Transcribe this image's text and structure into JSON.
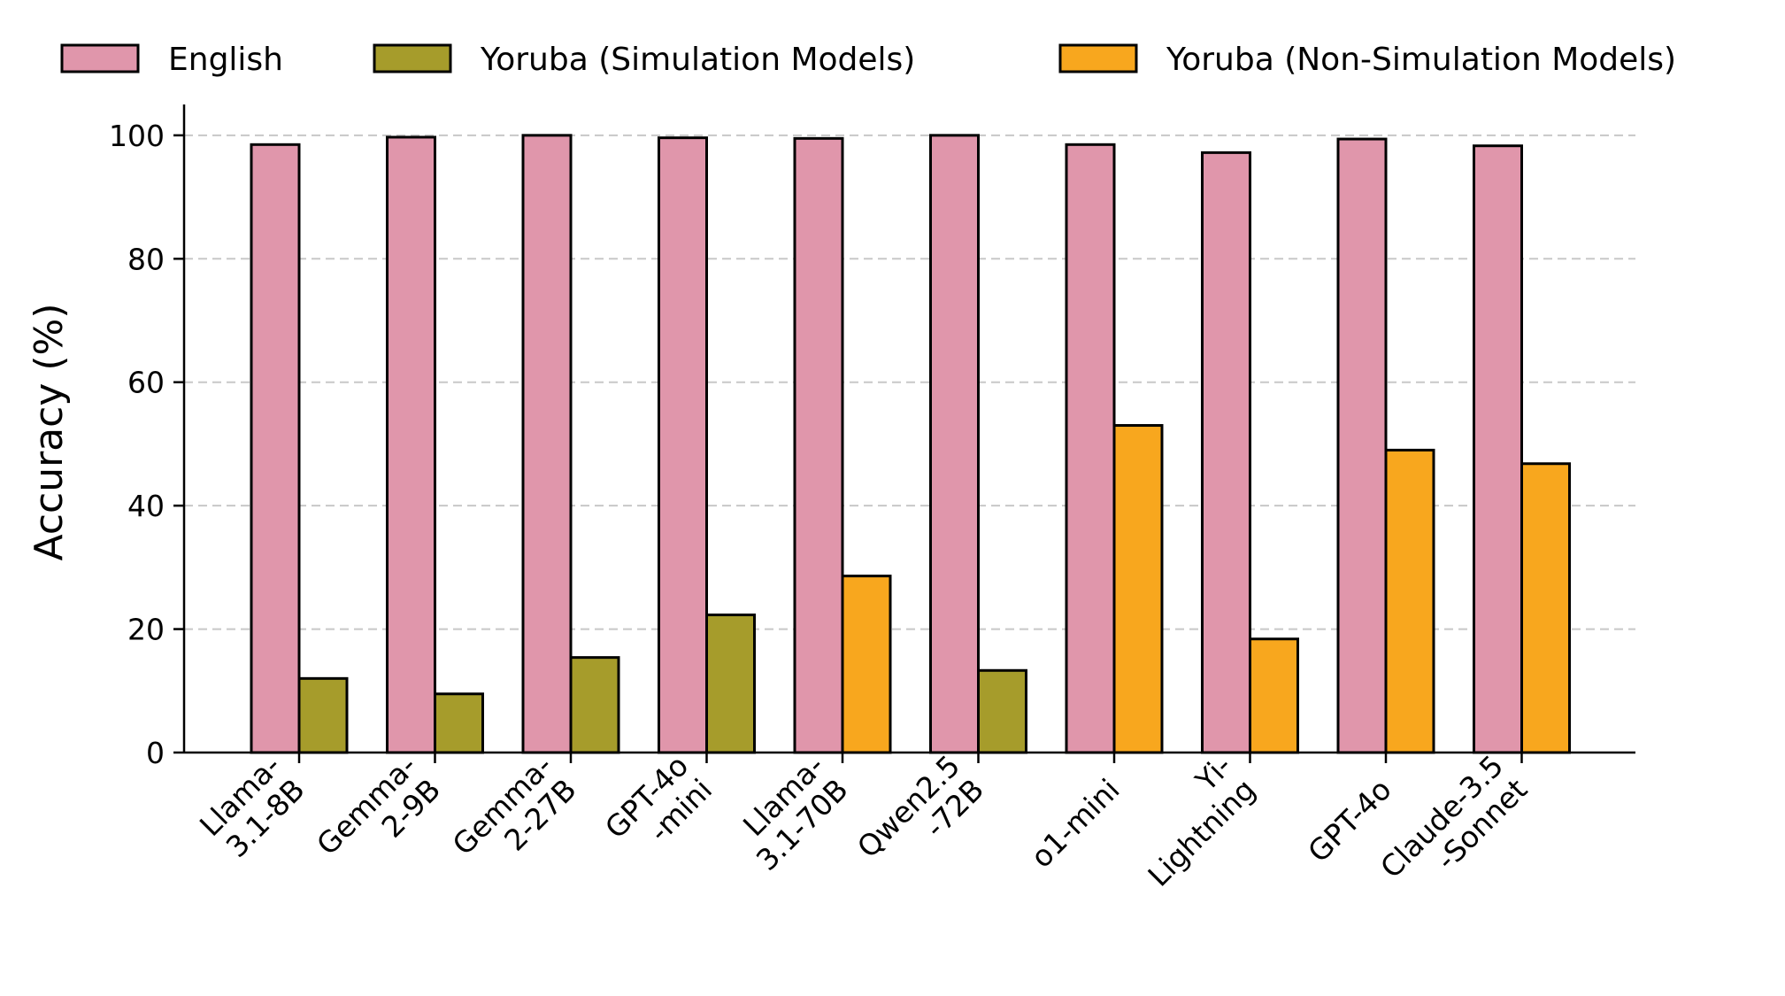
{
  "chart_data": {
    "type": "bar",
    "title": "",
    "xlabel": "",
    "ylabel": "Accuracy (%)",
    "ylim": [
      0,
      105
    ],
    "yticks": [
      0,
      20,
      40,
      60,
      80,
      100
    ],
    "grid": "horizontal dashed",
    "legend_position": "top",
    "categories": [
      [
        "Llama-",
        "3.1-8B"
      ],
      [
        "Gemma-",
        "2-9B"
      ],
      [
        "Gemma-",
        "2-27B"
      ],
      [
        "GPT-4o",
        "-mini"
      ],
      [
        "Llama-",
        "3.1-70B"
      ],
      [
        "Qwen2.5",
        "-72B"
      ],
      [
        "o1-mini"
      ],
      [
        "Yi-",
        "Lightning"
      ],
      [
        "GPT-4o"
      ],
      [
        "Claude-3.5",
        "-Sonnet"
      ]
    ],
    "series": [
      {
        "name": "English",
        "color": "#e096ab",
        "values": [
          98.5,
          99.7,
          100,
          99.6,
          99.5,
          100,
          98.5,
          97.2,
          99.4,
          98.3
        ]
      },
      {
        "name": "Yoruba",
        "legend": [
          "Yoruba (Simulation Models)",
          "Yoruba (Non-Simulation Models)"
        ],
        "colors": {
          "simulation": "#a69c2b",
          "non_simulation": "#f8a71e"
        },
        "values": [
          12,
          9.5,
          15.4,
          22.3,
          28.6,
          13.3,
          53,
          18.4,
          49,
          46.8
        ],
        "simulation": [
          true,
          true,
          true,
          true,
          false,
          true,
          false,
          false,
          false,
          false
        ]
      }
    ]
  }
}
